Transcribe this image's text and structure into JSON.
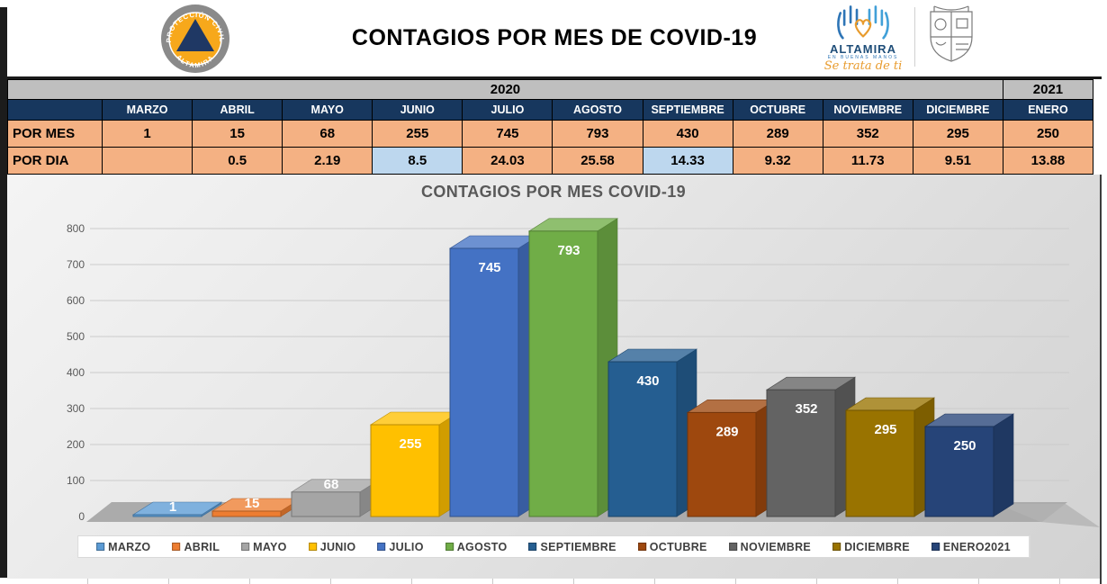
{
  "header": {
    "title": "CONTAGIOS POR MES DE COVID-19",
    "civil_protection_badge": {
      "ring_text_top": "PROTECCIÓN CIVIL",
      "ring_text_bottom": "ALTAMIRA"
    },
    "altamira_brand": {
      "name": "ALTAMIRA",
      "tagline": "EN BUENAS MANOS",
      "script": "Se trata de ti"
    }
  },
  "table": {
    "year_bands": [
      {
        "label": "2020"
      },
      {
        "label": "2021"
      }
    ],
    "row_labels": {
      "per_month": "POR MES",
      "per_day": "POR DIA"
    },
    "columns": [
      {
        "month": "MARZO",
        "por_mes": "1",
        "por_dia": "",
        "por_dia_highlight": false
      },
      {
        "month": "ABRIL",
        "por_mes": "15",
        "por_dia": "0.5",
        "por_dia_highlight": false
      },
      {
        "month": "MAYO",
        "por_mes": "68",
        "por_dia": "2.19",
        "por_dia_highlight": false
      },
      {
        "month": "JUNIO",
        "por_mes": "255",
        "por_dia": "8.5",
        "por_dia_highlight": true
      },
      {
        "month": "JULIO",
        "por_mes": "745",
        "por_dia": "24.03",
        "por_dia_highlight": false
      },
      {
        "month": "AGOSTO",
        "por_mes": "793",
        "por_dia": "25.58",
        "por_dia_highlight": false
      },
      {
        "month": "SEPTIEMBRE",
        "por_mes": "430",
        "por_dia": "14.33",
        "por_dia_highlight": true
      },
      {
        "month": "OCTUBRE",
        "por_mes": "289",
        "por_dia": "9.32",
        "por_dia_highlight": false
      },
      {
        "month": "NOVIEMBRE",
        "por_mes": "352",
        "por_dia": "11.73",
        "por_dia_highlight": false
      },
      {
        "month": "DICIEMBRE",
        "por_mes": "295",
        "por_dia": "9.51",
        "por_dia_highlight": false
      },
      {
        "month": "ENERO",
        "por_mes": "250",
        "por_dia": "13.88",
        "por_dia_highlight": false
      }
    ]
  },
  "colors": {
    "header_navy": "#17375E",
    "row_orange": "#F4B183",
    "highlight_blue": "#BDD7EE",
    "year_band_gray": "#BFBFBF",
    "axis_text": "#595959",
    "legend_text": "#3F3F3F"
  },
  "chart_data": {
    "type": "bar",
    "style": "3d",
    "title": "CONTAGIOS POR MES COVID-19",
    "categories": [
      "MARZO",
      "ABRIL",
      "MAYO",
      "JUNIO",
      "JULIO",
      "AGOSTO",
      "SEPTIEMBRE",
      "OCTUBRE",
      "NOVIEMBRE",
      "DICIEMBRE",
      "ENERO2021"
    ],
    "values": [
      1,
      15,
      68,
      255,
      745,
      793,
      430,
      289,
      352,
      295,
      250
    ],
    "series_colors": [
      "#5B9BD5",
      "#ED7D31",
      "#A5A5A5",
      "#FFC000",
      "#4472C4",
      "#70AD47",
      "#255E91",
      "#9E480E",
      "#636363",
      "#997300",
      "#264478"
    ],
    "xlabel": "",
    "ylabel": "",
    "ylim": [
      0,
      800
    ],
    "ytick_step": 100,
    "grid": true,
    "legend_position": "bottom"
  }
}
